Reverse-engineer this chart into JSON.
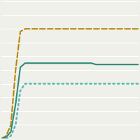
{
  "line1": {
    "color": "#b8860b",
    "linestyle": "--",
    "linewidth": 1.5,
    "y_vals": [
      0,
      2,
      10,
      50,
      78,
      80,
      80,
      80,
      80,
      80,
      80,
      80,
      80,
      80,
      80,
      80,
      80,
      80,
      80,
      80,
      80,
      80,
      80,
      80,
      80,
      80,
      80,
      80,
      80,
      80
    ]
  },
  "line2": {
    "color": "#2e8b7a",
    "linestyle": "-",
    "linewidth": 1.5,
    "y_vals": [
      0,
      1,
      5,
      25,
      52,
      55,
      55,
      55,
      55,
      55,
      55,
      55,
      55,
      55,
      55,
      55,
      55,
      55,
      55,
      55,
      54,
      54,
      54,
      54,
      54,
      54,
      54,
      54,
      54,
      54
    ]
  },
  "line3": {
    "color": "#5bb8b4",
    "linestyle": ":",
    "linewidth": 1.8,
    "y_vals": [
      0,
      0,
      2,
      10,
      35,
      40,
      40,
      40,
      40,
      40,
      40,
      40,
      40,
      40,
      40,
      40,
      40,
      40,
      40,
      40,
      40,
      40,
      40,
      40,
      40,
      40,
      40,
      40,
      40,
      40
    ]
  },
  "n_points": 30,
  "ylim": [
    0,
    100
  ],
  "xlim": [
    0,
    29
  ],
  "background_color": "#f0f0ea",
  "grid_color": "#ffffff",
  "grid_linewidth": 0.8,
  "grid_yticks": [
    10,
    20,
    30,
    40,
    50,
    60,
    70,
    80,
    90,
    100
  ]
}
